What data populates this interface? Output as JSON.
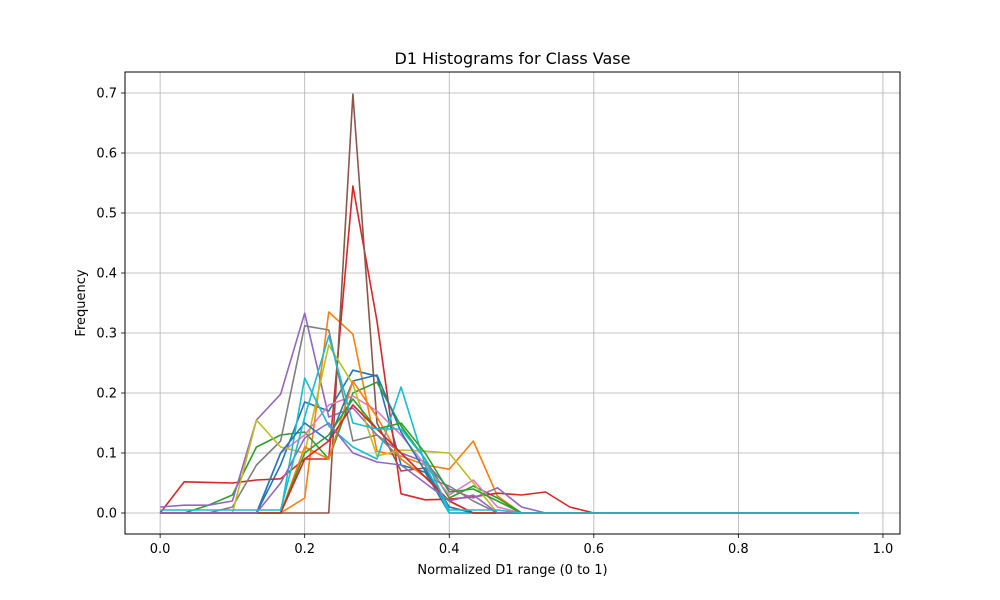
{
  "chart_data": {
    "type": "line",
    "title": "D1 Histograms for Class Vase",
    "xlabel": "Normalized D1 range (0 to 1)",
    "ylabel": "Frequency",
    "xlim": [
      -0.0486,
      1.0236
    ],
    "ylim": [
      -0.035,
      0.735
    ],
    "xticks": [
      "0.0",
      "0.2",
      "0.4",
      "0.6",
      "0.8",
      "1.0"
    ],
    "yticks": [
      "0.0",
      "0.1",
      "0.2",
      "0.3",
      "0.4",
      "0.5",
      "0.6",
      "0.7"
    ],
    "grid": true,
    "x": [
      0.0,
      0.0333,
      0.0667,
      0.1,
      0.1333,
      0.1667,
      0.2,
      0.2333,
      0.2667,
      0.3,
      0.3333,
      0.3667,
      0.4,
      0.4333,
      0.4667,
      0.5,
      0.5333,
      0.5667,
      0.6,
      0.6333,
      0.6667,
      0.7,
      0.7333,
      0.7667,
      0.8,
      0.8333,
      0.8667,
      0.9,
      0.9333,
      0.9667
    ],
    "series": [
      {
        "color": "#1f77b4",
        "values": [
          0.0,
          0.0,
          0.0,
          0.0,
          0.0,
          0.08,
          0.185,
          0.17,
          0.238,
          0.228,
          0.08,
          0.068,
          0.0,
          0.0,
          0.0,
          0.0,
          0.0,
          0.0,
          0.0,
          0.0,
          0.0,
          0.0,
          0.0,
          0.0,
          0.0,
          0.0,
          0.0,
          0.0,
          0.0,
          0.0
        ]
      },
      {
        "color": "#ff7f0e",
        "values": [
          0.0,
          0.0,
          0.0,
          0.0,
          0.0,
          0.0,
          0.025,
          0.335,
          0.298,
          0.103,
          0.095,
          0.08,
          0.073,
          0.12,
          0.028,
          0.0,
          0.0,
          0.0,
          0.0,
          0.0,
          0.0,
          0.0,
          0.0,
          0.0,
          0.0,
          0.0,
          0.0,
          0.0,
          0.0,
          0.0
        ]
      },
      {
        "color": "#2ca02c",
        "values": [
          0.0,
          0.0,
          0.013,
          0.03,
          0.11,
          0.13,
          0.135,
          0.09,
          0.2,
          0.218,
          0.145,
          0.09,
          0.025,
          0.045,
          0.025,
          0.0,
          0.0,
          0.0,
          0.0,
          0.0,
          0.0,
          0.0,
          0.0,
          0.0,
          0.0,
          0.0,
          0.0,
          0.0,
          0.0,
          0.0
        ]
      },
      {
        "color": "#d62728",
        "values": [
          0.0,
          0.052,
          0.051,
          0.05,
          0.055,
          0.057,
          0.09,
          0.09,
          0.545,
          0.32,
          0.032,
          0.022,
          0.023,
          0.027,
          0.033,
          0.03,
          0.035,
          0.01,
          0.0,
          0.0,
          0.0,
          0.0,
          0.0,
          0.0,
          0.0,
          0.0,
          0.0,
          0.0,
          0.0,
          0.0
        ]
      },
      {
        "color": "#9467bd",
        "values": [
          0.01,
          0.013,
          0.013,
          0.02,
          0.155,
          0.198,
          0.333,
          0.16,
          0.175,
          0.13,
          0.1,
          0.085,
          0.04,
          0.025,
          0.042,
          0.01,
          0.0,
          0.0,
          0.0,
          0.0,
          0.0,
          0.0,
          0.0,
          0.0,
          0.0,
          0.0,
          0.0,
          0.0,
          0.0,
          0.0
        ]
      },
      {
        "color": "#8c564b",
        "values": [
          0.0,
          0.0,
          0.0,
          0.0,
          0.0,
          0.0,
          0.0,
          0.0,
          0.698,
          0.15,
          0.07,
          0.075,
          0.01,
          0.0,
          0.0,
          0.0,
          0.0,
          0.0,
          0.0,
          0.0,
          0.0,
          0.0,
          0.0,
          0.0,
          0.0,
          0.0,
          0.0,
          0.0,
          0.0,
          0.0
        ]
      },
      {
        "color": "#e377c2",
        "values": [
          0.0,
          0.0,
          0.0,
          0.0,
          0.0,
          0.1,
          0.13,
          0.18,
          0.195,
          0.17,
          0.13,
          0.08,
          0.03,
          0.055,
          0.01,
          0.0,
          0.0,
          0.0,
          0.0,
          0.0,
          0.0,
          0.0,
          0.0,
          0.0,
          0.0,
          0.0,
          0.0,
          0.0,
          0.0,
          0.0
        ]
      },
      {
        "color": "#7f7f7f",
        "values": [
          0.0,
          0.0,
          0.0,
          0.01,
          0.08,
          0.12,
          0.312,
          0.305,
          0.12,
          0.13,
          0.09,
          0.06,
          0.045,
          0.02,
          0.0,
          0.0,
          0.0,
          0.0,
          0.0,
          0.0,
          0.0,
          0.0,
          0.0,
          0.0,
          0.0,
          0.0,
          0.0,
          0.0,
          0.0,
          0.0
        ]
      },
      {
        "color": "#bcbd22",
        "values": [
          0.0,
          0.0,
          0.0,
          0.0,
          0.155,
          0.11,
          0.1,
          0.28,
          0.215,
          0.095,
          0.105,
          0.103,
          0.1,
          0.05,
          0.0,
          0.0,
          0.0,
          0.0,
          0.0,
          0.0,
          0.0,
          0.0,
          0.0,
          0.0,
          0.0,
          0.0,
          0.0,
          0.0,
          0.0,
          0.0
        ]
      },
      {
        "color": "#17becf",
        "values": [
          0.0,
          0.0,
          0.0,
          0.0,
          0.0,
          0.0,
          0.225,
          0.145,
          0.11,
          0.09,
          0.21,
          0.08,
          0.0,
          0.0,
          0.0,
          0.0,
          0.0,
          0.0,
          0.0,
          0.0,
          0.0,
          0.0,
          0.0,
          0.0,
          0.0,
          0.0,
          0.0,
          0.0,
          0.0,
          0.0
        ]
      },
      {
        "color": "#1f77b4",
        "values": [
          0.0,
          0.0,
          0.0,
          0.0,
          0.0,
          0.1,
          0.15,
          0.12,
          0.22,
          0.23,
          0.135,
          0.07,
          0.01,
          0.0,
          0.0,
          0.0,
          0.0,
          0.0,
          0.0,
          0.0,
          0.0,
          0.0,
          0.0,
          0.0,
          0.0,
          0.0,
          0.0,
          0.0,
          0.0,
          0.0
        ]
      },
      {
        "color": "#ff7f0e",
        "values": [
          0.0,
          0.0,
          0.0,
          0.0,
          0.0,
          0.0,
          0.11,
          0.09,
          0.22,
          0.16,
          0.09,
          0.06,
          0.02,
          0.0,
          0.0,
          0.0,
          0.0,
          0.0,
          0.0,
          0.0,
          0.0,
          0.0,
          0.0,
          0.0,
          0.0,
          0.0,
          0.0,
          0.0,
          0.0,
          0.0
        ]
      },
      {
        "color": "#2ca02c",
        "values": [
          0.0,
          0.0,
          0.0,
          0.0,
          0.0,
          0.0,
          0.1,
          0.13,
          0.19,
          0.14,
          0.15,
          0.1,
          0.035,
          0.04,
          0.02,
          0.0,
          0.0,
          0.0,
          0.0,
          0.0,
          0.0,
          0.0,
          0.0,
          0.0,
          0.0,
          0.0,
          0.0,
          0.0,
          0.0,
          0.0
        ]
      },
      {
        "color": "#d62728",
        "values": [
          0.0,
          0.0,
          0.0,
          0.0,
          0.0,
          0.0,
          0.09,
          0.12,
          0.18,
          0.14,
          0.1,
          0.06,
          0.02,
          0.0,
          0.0,
          0.0,
          0.0,
          0.0,
          0.0,
          0.0,
          0.0,
          0.0,
          0.0,
          0.0,
          0.0,
          0.0,
          0.0,
          0.0,
          0.0,
          0.0
        ]
      },
      {
        "color": "#9467bd",
        "values": [
          0.0,
          0.0,
          0.0,
          0.0,
          0.0,
          0.05,
          0.125,
          0.15,
          0.1,
          0.085,
          0.08,
          0.05,
          0.02,
          0.03,
          0.0,
          0.0,
          0.0,
          0.0,
          0.0,
          0.0,
          0.0,
          0.0,
          0.0,
          0.0,
          0.0,
          0.0,
          0.0,
          0.0,
          0.0,
          0.0
        ]
      },
      {
        "color": "#17becf",
        "values": [
          0.005,
          0.005,
          0.005,
          0.005,
          0.005,
          0.005,
          0.16,
          0.295,
          0.15,
          0.14,
          0.14,
          0.09,
          0.005,
          0.005,
          0.005,
          0.0,
          0.0,
          0.0,
          0.0,
          0.0,
          0.0,
          0.0,
          0.0,
          0.0,
          0.0,
          0.0,
          0.0,
          0.0,
          0.0,
          0.0
        ]
      }
    ]
  }
}
